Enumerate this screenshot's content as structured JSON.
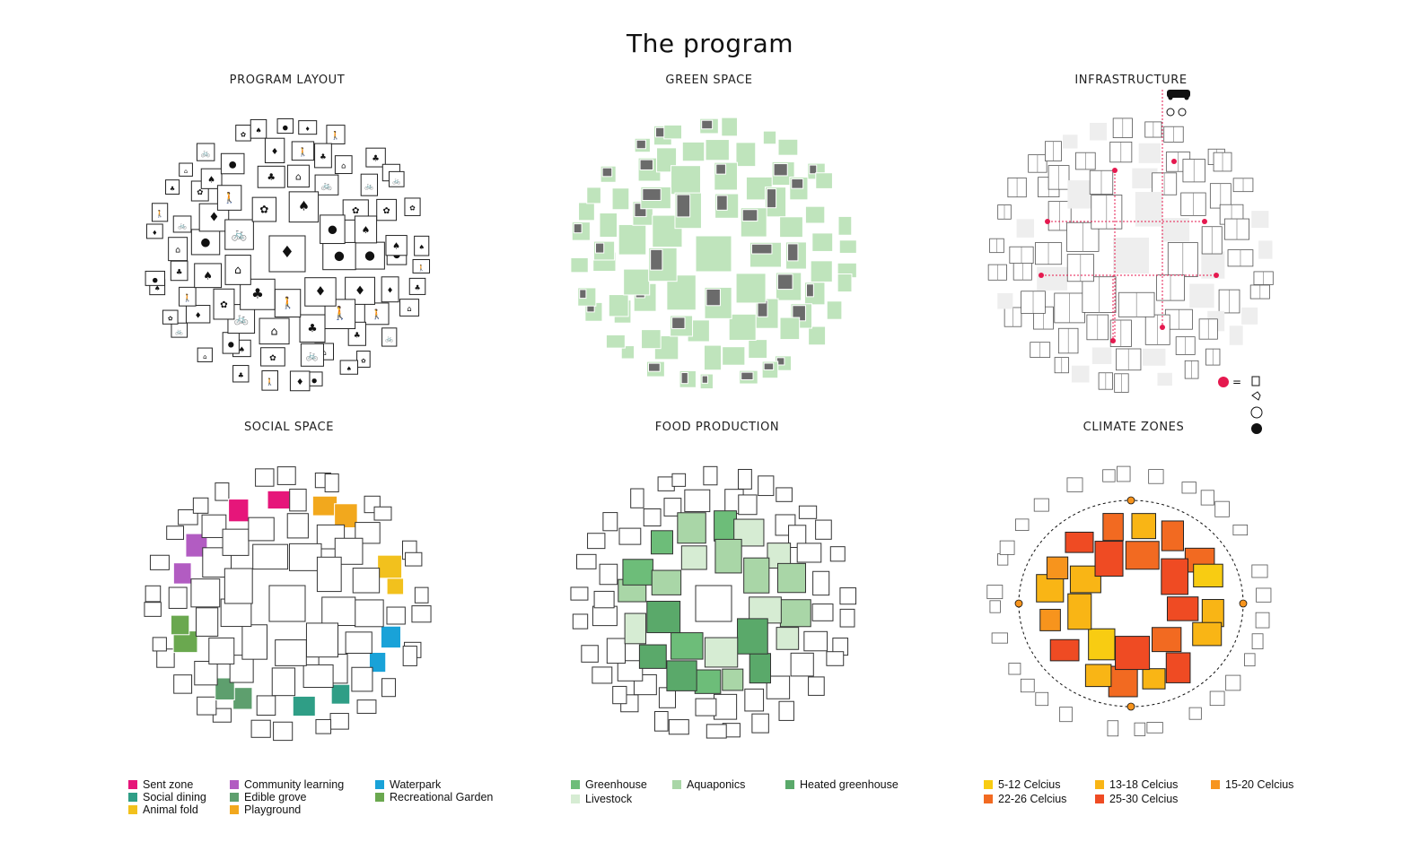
{
  "title": "The program",
  "panels": {
    "program_layout": {
      "title": "PROGRAM LAYOUT"
    },
    "green_space": {
      "title": "GREEN SPACE"
    },
    "infrastructure": {
      "title": "INFRASTRUCTURE",
      "key": {
        "equals": "=",
        "icons": [
          "car-icon",
          "bicycle-icon",
          "charging-station-icon",
          "hand-icon",
          "parking-icon",
          "bus-icon"
        ]
      }
    },
    "social_space": {
      "title": "SOCIAL SPACE"
    },
    "food_production": {
      "title": "FOOD PRODUCTION"
    },
    "climate_zones": {
      "title": "CLIMATE ZONES"
    }
  },
  "colors": {
    "sent_zone": "#e6167a",
    "community_learning": "#b25cc2",
    "waterpark": "#19a2d8",
    "social_dining": "#2f9e86",
    "edible_grove": "#5e9f6e",
    "recreational_garden": "#6aa84f",
    "animal_fold": "#f2c11d",
    "playground": "#f2a81d",
    "greenhouse": "#6dbd79",
    "aquaponics": "#a9d6a7",
    "heated_greenhouse": "#5aa96a",
    "livestock": "#d6ecd3",
    "c5_12": "#f8cc12",
    "c13_18": "#f9b515",
    "c15_20": "#f7941d",
    "c22_26": "#f26a21",
    "c25_30": "#ef4b23",
    "infra_red": "#e5194f",
    "green_light": "#bfe4bc",
    "dark_block": "#6b6b6b"
  },
  "legends": {
    "social": [
      {
        "label": "Sent zone",
        "color": "#e6167a"
      },
      {
        "label": "Community learning",
        "color": "#b25cc2"
      },
      {
        "label": "Waterpark",
        "color": "#19a2d8"
      },
      {
        "label": "Social dining",
        "color": "#2f9e86"
      },
      {
        "label": "Edible grove",
        "color": "#5e9f6e"
      },
      {
        "label": "Recreational Garden",
        "color": "#6aa84f"
      },
      {
        "label": "Animal fold",
        "color": "#f2c11d"
      },
      {
        "label": "Playground",
        "color": "#f2a81d"
      }
    ],
    "food": [
      {
        "label": "Greenhouse",
        "color": "#6dbd79"
      },
      {
        "label": "Aquaponics",
        "color": "#a9d6a7"
      },
      {
        "label": "Heated greenhouse",
        "color": "#5aa96a"
      },
      {
        "label": "Livestock",
        "color": "#d6ecd3"
      }
    ],
    "climate": [
      {
        "label": "5-12 Celcius",
        "color": "#f8cc12"
      },
      {
        "label": "13-18 Celcius",
        "color": "#f9b515"
      },
      {
        "label": "15-20 Celcius",
        "color": "#f7941d"
      },
      {
        "label": "22-26 Celcius",
        "color": "#f26a21"
      },
      {
        "label": "25-30 Celcius",
        "color": "#ef4b23"
      }
    ]
  }
}
